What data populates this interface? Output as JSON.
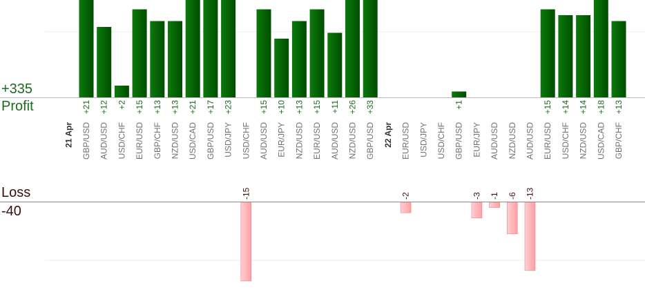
{
  "summary": {
    "profit_total": "+335",
    "profit_label": "Profit",
    "loss_label": "Loss",
    "loss_total": "-40"
  },
  "colors": {
    "profit_bar": "#006400",
    "profit_label": "#1a6b1a",
    "loss_bar": "#ffb6b9",
    "loss_text": "#3a0f0f",
    "axis_text": "#707070",
    "grid": "#eeeeee"
  },
  "chart_data": {
    "type": "bar",
    "categories": [
      {
        "date": "21 Apr",
        "pair": "GBP/USD",
        "label": "+21",
        "value": 21
      },
      {
        "pair": "AUD/USD",
        "label": "+12",
        "value": 12
      },
      {
        "pair": "USD/CHF",
        "label": "+2",
        "value": 2
      },
      {
        "pair": "EUR/USD",
        "label": "+15",
        "value": 15
      },
      {
        "pair": "GBP/CHF",
        "label": "+13",
        "value": 13
      },
      {
        "pair": "NZD/USD",
        "label": "+13",
        "value": 13
      },
      {
        "pair": "USD/CAD",
        "label": "+21",
        "value": 21
      },
      {
        "pair": "GBP/USD",
        "label": "+17",
        "value": 17
      },
      {
        "pair": "USD/JPY",
        "label": "+23",
        "value": 23
      },
      {
        "pair": "USD/CHF",
        "label": "-15",
        "value": -15
      },
      {
        "pair": "AUD/USD",
        "label": "+15",
        "value": 15
      },
      {
        "pair": "EUR/JPY",
        "label": "+10",
        "value": 10
      },
      {
        "pair": "NZD/USD",
        "label": "+13",
        "value": 13
      },
      {
        "pair": "EUR/USD",
        "label": "+15",
        "value": 15
      },
      {
        "pair": "AUD/USD",
        "label": "+11",
        "value": 11
      },
      {
        "pair": "NZD/USD",
        "label": "+26",
        "value": 26
      },
      {
        "pair": "GBP/USD",
        "label": "+33",
        "value": 33
      },
      {
        "gap": true
      },
      {
        "date": "22 Apr",
        "pair": "EUR/USD",
        "label": "-2",
        "value": -2
      },
      {
        "pair": "USD/JPY",
        "label": "",
        "value": 0
      },
      {
        "pair": "USD/CHF",
        "label": "",
        "value": 0
      },
      {
        "pair": "GBP/USD",
        "label": "+1",
        "value": 1
      },
      {
        "pair": "EUR/JPY",
        "label": "-3",
        "value": -3
      },
      {
        "pair": "AUD/USD",
        "label": "-1",
        "value": -1
      },
      {
        "pair": "NZD/USD",
        "label": "-6",
        "value": -6
      },
      {
        "pair": "AUD/USD",
        "label": "-13",
        "value": -13
      },
      {
        "pair": "EUR/USD",
        "label": "+15",
        "value": 15
      },
      {
        "pair": "USD/CHF",
        "label": "+14",
        "value": 14
      },
      {
        "pair": "NZD/USD",
        "label": "+14",
        "value": 14
      },
      {
        "pair": "USD/CAD",
        "label": "+18",
        "value": 18
      },
      {
        "pair": "GBP/CHF",
        "label": "+13",
        "value": 13
      }
    ],
    "grid": true,
    "legend": "none"
  }
}
